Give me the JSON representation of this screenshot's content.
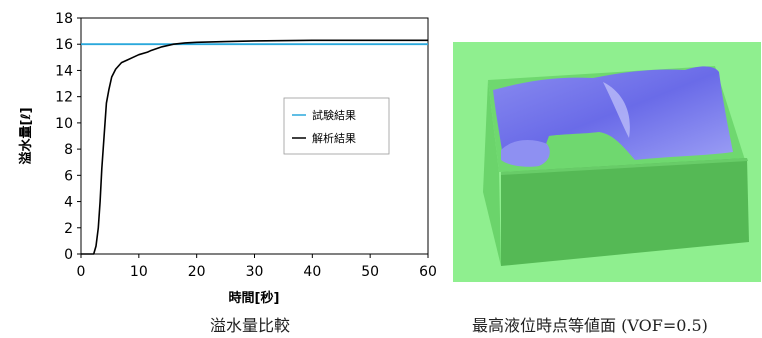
{
  "chart_data": {
    "type": "line",
    "xlabel": "時間[秒]",
    "ylabel": "溢水量[ℓ]",
    "xlim": [
      0,
      60
    ],
    "ylim": [
      0,
      18
    ],
    "xticks": [
      0,
      10,
      20,
      30,
      40,
      50,
      60
    ],
    "yticks": [
      0,
      2,
      4,
      6,
      8,
      10,
      12,
      14,
      16,
      18
    ],
    "grid": false,
    "legend_position": "middle-right",
    "series": [
      {
        "name": "試験結果",
        "color": "#2aa8dc",
        "x": [
          0,
          60
        ],
        "y": [
          16.0,
          16.0
        ]
      },
      {
        "name": "解析結果",
        "color": "#000000",
        "x": [
          0,
          2.2,
          2.6,
          3.0,
          3.3,
          3.6,
          4.0,
          4.4,
          4.8,
          5.3,
          6.0,
          7.0,
          8.0,
          9.0,
          10.0,
          11.5,
          12.0,
          14.0,
          16.0,
          18.0,
          20.0,
          25.0,
          30.0,
          40.0,
          50.0,
          60.0
        ],
        "y": [
          0,
          0,
          0.6,
          2.0,
          4.0,
          6.5,
          9.0,
          11.5,
          12.5,
          13.5,
          14.1,
          14.6,
          14.8,
          15.0,
          15.2,
          15.4,
          15.5,
          15.8,
          16.0,
          16.1,
          16.15,
          16.2,
          16.25,
          16.3,
          16.3,
          16.3
        ]
      }
    ]
  },
  "captions": {
    "left": "溢水量比較",
    "right": "最高液位時点等値面 (VOF=0.5)"
  }
}
